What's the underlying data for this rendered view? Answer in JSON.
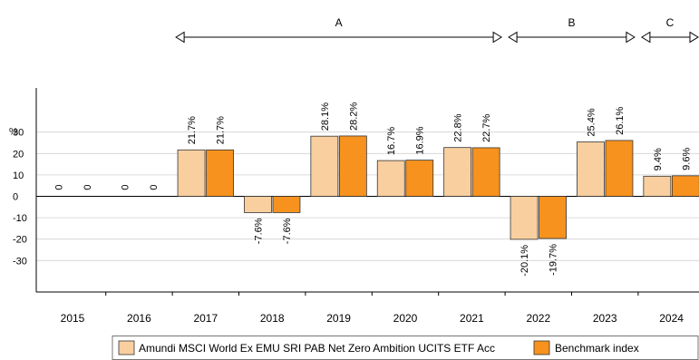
{
  "chart_data": {
    "type": "bar",
    "unit_label": "%",
    "categories": [
      "2015",
      "2016",
      "2017",
      "2018",
      "2019",
      "2020",
      "2021",
      "2022",
      "2023",
      "2024"
    ],
    "series": [
      {
        "name": "Amundi MSCI World Ex EMU SRI PAB Net Zero Ambition UCITS ETF Acc",
        "color": "#f9cfa0",
        "values": [
          0,
          0,
          21.7,
          -7.6,
          28.1,
          16.7,
          22.8,
          -20.1,
          25.4,
          9.4
        ],
        "labels": [
          "0",
          "0",
          "21.7%",
          "-7.6%",
          "28.1%",
          "16.7%",
          "22.8%",
          "-20.1%",
          "25.4%",
          "9.4%"
        ]
      },
      {
        "name": "Benchmark index",
        "color": "#f7921e",
        "values": [
          0,
          0,
          21.7,
          -7.6,
          28.2,
          16.9,
          22.7,
          -19.7,
          26.1,
          9.6
        ],
        "labels": [
          "0",
          "0",
          "21.7%",
          "-7.6%",
          "28.2%",
          "16.9%",
          "22.7%",
          "-19.7%",
          "26.1%",
          "9.6%"
        ]
      }
    ],
    "ylim": [
      -45,
      50
    ],
    "yticks": [
      30,
      20,
      10,
      0,
      -10,
      -20,
      -30
    ],
    "ytick_labels": [
      "30",
      "20",
      "10",
      "0",
      "-10",
      "-20",
      "-30"
    ],
    "grid": true,
    "legend_position": "bottom",
    "periods": [
      {
        "label": "A",
        "start": "2017",
        "end": "2021"
      },
      {
        "label": "B",
        "start": "2022",
        "end": "2023"
      },
      {
        "label": "C",
        "start": "2024",
        "end": "2024"
      }
    ]
  }
}
